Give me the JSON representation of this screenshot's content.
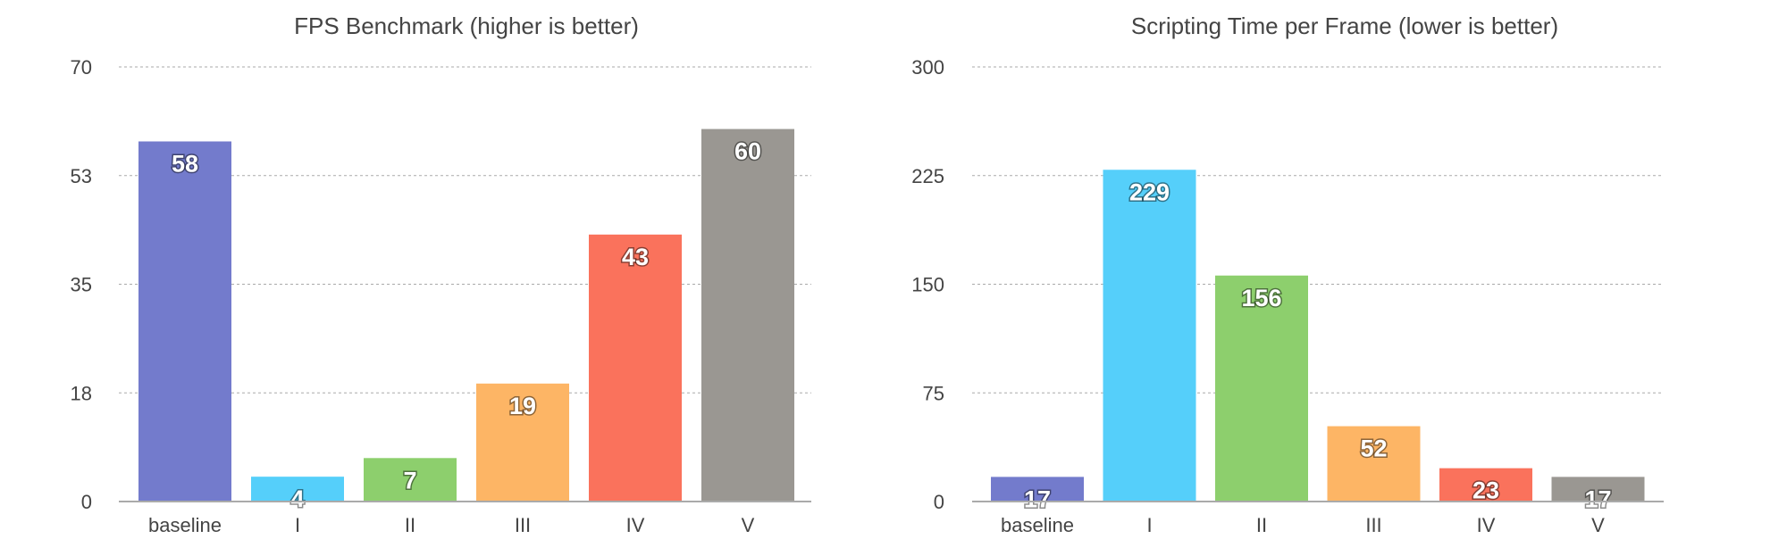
{
  "chart_data": [
    {
      "type": "bar",
      "title": "FPS Benchmark (higher is better)",
      "categories": [
        "baseline",
        "I",
        "II",
        "III",
        "IV",
        "V"
      ],
      "values": [
        58,
        4,
        7,
        19,
        43,
        60
      ],
      "data_labels": [
        "58",
        "4",
        "7",
        "19",
        "43",
        "60"
      ],
      "yticks": [
        "0",
        "18",
        "35",
        "53",
        "70"
      ],
      "ylim": [
        0,
        70
      ],
      "colors": [
        "#737bcc",
        "#55cffa",
        "#8dcf6d",
        "#fdb565",
        "#fa725c",
        "#9a9792"
      ],
      "grid": true,
      "xlabel": "",
      "ylabel": ""
    },
    {
      "type": "bar",
      "title": "Scripting Time per Frame (lower is better)",
      "categories": [
        "baseline",
        "I",
        "II",
        "III",
        "IV",
        "V"
      ],
      "values": [
        17,
        229,
        156,
        52,
        23,
        17
      ],
      "data_labels": [
        "17",
        "229",
        "156",
        "52",
        "23",
        "17"
      ],
      "yticks": [
        "0",
        "75",
        "150",
        "225",
        "300"
      ],
      "ylim": [
        0,
        300
      ],
      "colors": [
        "#737bcc",
        "#55cffa",
        "#8dcf6d",
        "#fdb565",
        "#fa725c",
        "#9a9792"
      ],
      "grid": true,
      "xlabel": "",
      "ylabel": ""
    }
  ]
}
